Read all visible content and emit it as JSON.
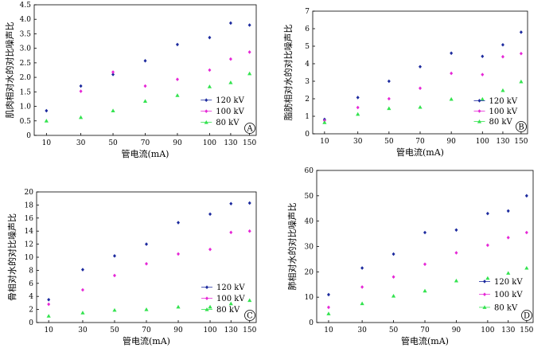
{
  "chart_data": [
    {
      "type": "scatter",
      "panel": "A",
      "xlabel": "管电流(mA)",
      "ylabel": "肌肉相对水的对比噪声比",
      "categories": [
        "10",
        "30",
        "50",
        "70",
        "90",
        "100",
        "130",
        "150"
      ],
      "ylim": [
        0,
        4.5
      ],
      "yticks": [
        "0",
        "0.5",
        "1.0",
        "1.5",
        "2.0",
        "2.5",
        "3.0",
        "3.5",
        "4.0",
        "4.5"
      ],
      "yticks_values": [
        0,
        0.5,
        1.0,
        1.5,
        2.0,
        2.5,
        3.0,
        3.5,
        4.0,
        4.5
      ],
      "legend_position": "bottom-right",
      "series": [
        {
          "name": "120 kV",
          "marker": "diamond",
          "color": "#1c2a9e",
          "values": [
            0.85,
            1.7,
            2.1,
            2.57,
            3.13,
            3.37,
            3.87,
            3.8
          ]
        },
        {
          "name": "100 kV",
          "marker": "diamond",
          "color": "#e627d6",
          "values": [
            null,
            1.52,
            2.18,
            1.7,
            1.93,
            2.25,
            2.63,
            2.87
          ]
        },
        {
          "name": "80 kV",
          "marker": "triangle",
          "color": "#33e34f",
          "values": [
            0.5,
            0.62,
            0.85,
            1.18,
            1.38,
            1.68,
            1.82,
            2.13
          ]
        }
      ]
    },
    {
      "type": "scatter",
      "panel": "B",
      "xlabel": "管电流(mA)",
      "ylabel": "脂肪相对水的对比噪声比",
      "categories": [
        "10",
        "30",
        "50",
        "70",
        "90",
        "100",
        "130",
        "150"
      ],
      "ylim": [
        0,
        7
      ],
      "yticks": [
        "0",
        "1",
        "2",
        "3",
        "4",
        "5",
        "6",
        "7"
      ],
      "yticks_values": [
        0,
        1,
        2,
        3,
        4,
        5,
        6,
        7
      ],
      "legend_position": "bottom-right",
      "series": [
        {
          "name": "120 kV",
          "marker": "diamond",
          "color": "#1c2a9e",
          "values": [
            0.82,
            2.07,
            3.0,
            3.83,
            4.6,
            4.42,
            5.08,
            5.8
          ]
        },
        {
          "name": "100 kV",
          "marker": "diamond",
          "color": "#e627d6",
          "values": [
            0.75,
            1.5,
            2.0,
            2.6,
            3.45,
            3.38,
            4.4,
            4.58
          ]
        },
        {
          "name": "80 kV",
          "marker": "triangle",
          "color": "#33e34f",
          "values": [
            0.65,
            1.12,
            1.45,
            1.52,
            1.98,
            1.98,
            2.48,
            2.98
          ]
        }
      ]
    },
    {
      "type": "scatter",
      "panel": "C",
      "xlabel": "管电流(mA)",
      "ylabel": "骨相对水的对比噪声比",
      "categories": [
        "10",
        "30",
        "50",
        "70",
        "90",
        "100",
        "130",
        "150"
      ],
      "ylim": [
        0,
        20
      ],
      "yticks": [
        "0",
        "2",
        "4",
        "6",
        "8",
        "10",
        "12",
        "14",
        "16",
        "18",
        "20"
      ],
      "yticks_values": [
        0,
        2,
        4,
        6,
        8,
        10,
        12,
        14,
        16,
        18,
        20
      ],
      "legend_position": "bottom-right",
      "series": [
        {
          "name": "120 kV",
          "marker": "diamond",
          "color": "#1c2a9e",
          "values": [
            3.5,
            8.1,
            10.2,
            12.0,
            15.3,
            16.6,
            18.2,
            18.3
          ]
        },
        {
          "name": "100 kV",
          "marker": "diamond",
          "color": "#e627d6",
          "values": [
            2.8,
            5.0,
            7.2,
            9.0,
            10.5,
            11.2,
            13.8,
            14.0
          ]
        },
        {
          "name": "80 kV",
          "marker": "triangle",
          "color": "#33e34f",
          "values": [
            1.0,
            1.5,
            1.9,
            2.0,
            2.4,
            2.4,
            2.9,
            3.4
          ]
        }
      ]
    },
    {
      "type": "scatter",
      "panel": "D",
      "xlabel": "管电流(mA)",
      "ylabel": "肺相对水的对比噪声比",
      "categories": [
        "10",
        "30",
        "50",
        "70",
        "90",
        "100",
        "130",
        "150"
      ],
      "ylim": [
        0,
        60
      ],
      "yticks": [
        "0",
        "10",
        "20",
        "30",
        "40",
        "50",
        "60"
      ],
      "yticks_values": [
        0,
        10,
        20,
        30,
        40,
        50,
        60
      ],
      "legend_position": "bottom-right",
      "series": [
        {
          "name": "120 kV",
          "marker": "diamond",
          "color": "#1c2a9e",
          "values": [
            11.0,
            21.5,
            27.0,
            35.5,
            36.5,
            43.0,
            44.0,
            50.0
          ]
        },
        {
          "name": "100 kV",
          "marker": "diamond",
          "color": "#e627d6",
          "values": [
            6.0,
            14.0,
            18.0,
            23.0,
            27.5,
            30.5,
            33.5,
            35.5
          ]
        },
        {
          "name": "80 kV",
          "marker": "triangle",
          "color": "#33e34f",
          "values": [
            3.5,
            7.5,
            10.5,
            12.5,
            16.5,
            17.5,
            19.5,
            21.5
          ]
        }
      ]
    }
  ]
}
